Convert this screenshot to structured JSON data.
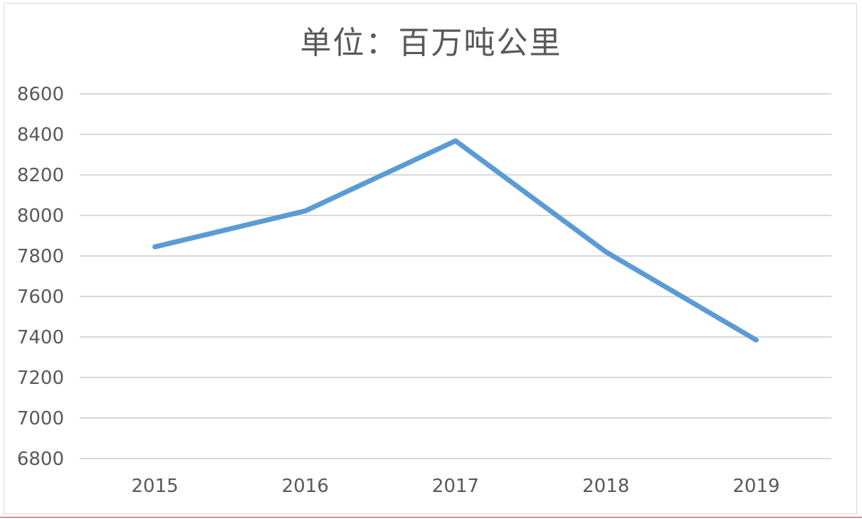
{
  "chart_data": {
    "type": "line",
    "title": "单位：百万吨公里",
    "xlabel": "",
    "ylabel": "",
    "categories": [
      "2015",
      "2016",
      "2017",
      "2018",
      "2019"
    ],
    "series": [
      {
        "values": [
          7845,
          8022,
          8368,
          7820,
          7385
        ],
        "color": "#5b9bd5"
      }
    ],
    "ylim": [
      6800,
      8600
    ],
    "yticks": [
      "8600",
      "8400",
      "8200",
      "8000",
      "7800",
      "7600",
      "7400",
      "7200",
      "7000",
      "6800"
    ],
    "grid": true,
    "legend": "none",
    "colors": {
      "line": "#5b9bd5",
      "grid": "#d9d9d9",
      "text": "#595959"
    }
  }
}
